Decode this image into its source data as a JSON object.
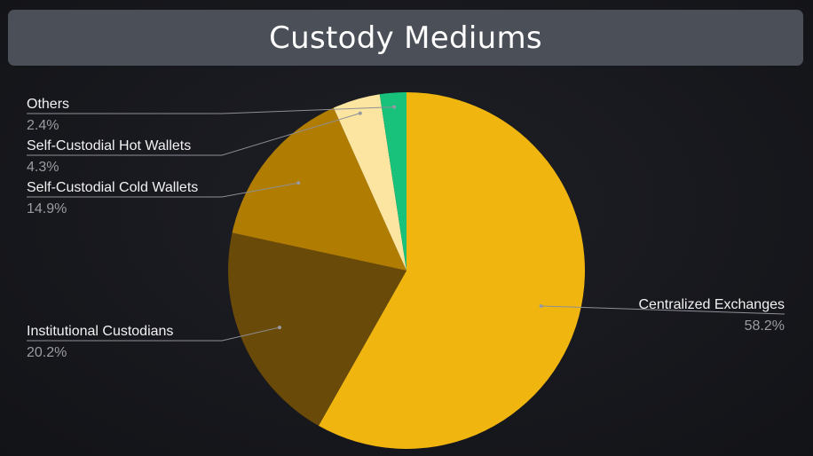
{
  "chart_data": {
    "type": "pie",
    "title": "Custody Mediums",
    "slices": [
      {
        "label": "Centralized Exchanges",
        "value": 58.2,
        "display": "58.2%",
        "color": "#f0b60f"
      },
      {
        "label": "Institutional Custodians",
        "value": 20.2,
        "display": "20.2%",
        "color": "#6a4a08"
      },
      {
        "label": "Self-Custodial Cold Wallets",
        "value": 14.9,
        "display": "14.9%",
        "color": "#b07c02"
      },
      {
        "label": "Self-Custodial Hot Wallets",
        "value": 4.3,
        "display": "4.3%",
        "color": "#fbe5a0"
      },
      {
        "label": "Others",
        "value": 2.4,
        "display": "2.4%",
        "color": "#18c27b"
      }
    ],
    "start_angle": "12 o'clock",
    "direction": "clockwise",
    "legend": "none"
  },
  "colors": {
    "background": "#17181d",
    "title_bar": "#4a4f58"
  }
}
